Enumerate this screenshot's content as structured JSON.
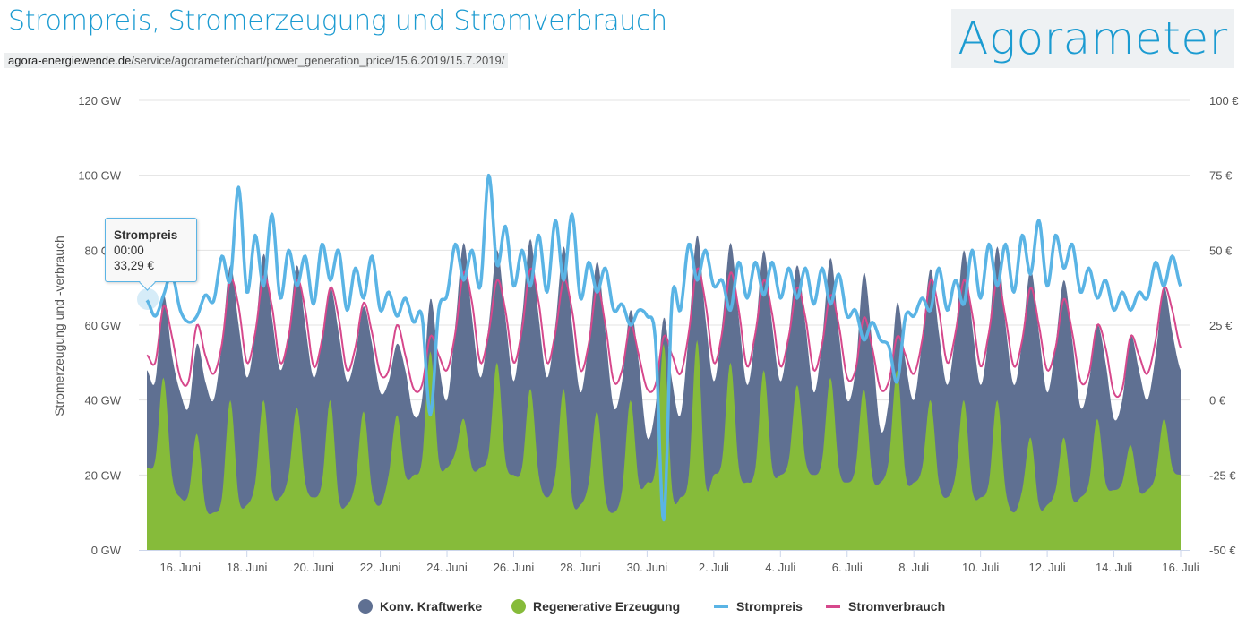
{
  "header": {
    "title": "Strompreis, Stromerzeugung und Stromverbrauch",
    "url_domain": "agora-energiewende.de",
    "url_path": "/service/agorameter/chart/power_generation_price/15.6.2019/15.7.2019/",
    "brand": "Agorameter"
  },
  "tooltip": {
    "series": "Strompreis",
    "time": "00:00",
    "value": "33,29 €"
  },
  "colors": {
    "konv": "#5f7092",
    "regen": "#86bb3a",
    "preis": "#5ab4e5",
    "verbrauch": "#d6488c",
    "title": "#1b9bd1"
  },
  "chart_data": {
    "type": "area+line",
    "ylabel": "Stromerzeugung und -verbrauch",
    "ylim_left": [
      0,
      120
    ],
    "ylim_right": [
      -50,
      100
    ],
    "left_ticks": [
      "0 GW",
      "20 GW",
      "40 GW",
      "60 GW",
      "80 GW",
      "100 GW",
      "120 GW"
    ],
    "right_ticks": [
      "-50 €",
      "-25 €",
      "0 €",
      "25 €",
      "50 €",
      "75 €",
      "100 €"
    ],
    "x_ticks": [
      "16. Juni",
      "18. Juni",
      "20. Juni",
      "22. Juni",
      "24. Juni",
      "26. Juni",
      "28. Juni",
      "30. Juni",
      "2. Juli",
      "4. Juli",
      "6. Juli",
      "8. Juli",
      "10. Juli",
      "12. Juli",
      "14. Juli",
      "16. Juli"
    ],
    "x_start": "15.6.2019 00:00",
    "x_end": "16.7.2019 00:00",
    "sample_hours": [
      0,
      6,
      12,
      18
    ],
    "grid": true,
    "legend_position": "bottom",
    "series": [
      {
        "name": "Konv. Kraftwerke",
        "kind": "stacked-area",
        "unit": "GW",
        "note_total_generation": true,
        "values": [
          48,
          45,
          68,
          52,
          42,
          38,
          55,
          45,
          40,
          55,
          76,
          60,
          46,
          58,
          79,
          62,
          48,
          58,
          76,
          60,
          46,
          56,
          70,
          58,
          45,
          52,
          65,
          55,
          42,
          45,
          55,
          48,
          36,
          40,
          67,
          50,
          40,
          60,
          82,
          62,
          46,
          60,
          80,
          62,
          45,
          62,
          83,
          62,
          46,
          60,
          81,
          60,
          42,
          56,
          77,
          58,
          38,
          45,
          64,
          50,
          30,
          38,
          62,
          45,
          36,
          58,
          84,
          62,
          45,
          60,
          82,
          62,
          44,
          58,
          80,
          60,
          45,
          58,
          76,
          60,
          42,
          56,
          78,
          58,
          40,
          48,
          74,
          55,
          32,
          40,
          66,
          50,
          40,
          56,
          75,
          58,
          44,
          58,
          80,
          60,
          44,
          58,
          81,
          60,
          44,
          56,
          75,
          58,
          42,
          55,
          72,
          56,
          38,
          45,
          60,
          50,
          35,
          40,
          57,
          48,
          40,
          52,
          70,
          58,
          48
        ]
      },
      {
        "name": "Regenerative Erzeugung",
        "kind": "area",
        "unit": "GW",
        "values": [
          22,
          24,
          46,
          20,
          14,
          15,
          31,
          12,
          10,
          14,
          40,
          14,
          12,
          18,
          40,
          16,
          14,
          20,
          38,
          18,
          14,
          18,
          40,
          14,
          12,
          18,
          37,
          16,
          12,
          20,
          36,
          20,
          20,
          24,
          53,
          24,
          22,
          26,
          35,
          22,
          22,
          26,
          50,
          24,
          20,
          22,
          43,
          20,
          14,
          20,
          43,
          14,
          12,
          18,
          37,
          14,
          10,
          16,
          40,
          18,
          18,
          22,
          55,
          16,
          14,
          20,
          56,
          18,
          20,
          24,
          50,
          22,
          18,
          22,
          48,
          22,
          20,
          24,
          44,
          24,
          20,
          24,
          46,
          22,
          18,
          22,
          43,
          20,
          18,
          24,
          48,
          20,
          18,
          22,
          40,
          18,
          14,
          20,
          40,
          16,
          14,
          18,
          40,
          16,
          10,
          16,
          30,
          12,
          12,
          16,
          30,
          14,
          14,
          18,
          35,
          18,
          16,
          18,
          28,
          16,
          16,
          20,
          35,
          22,
          20
        ]
      },
      {
        "name": "Strompreis",
        "kind": "line",
        "unit": "€",
        "axis": "right",
        "values": [
          33.29,
          28,
          35,
          42,
          30,
          26,
          28,
          35,
          33,
          48,
          40,
          71,
          36,
          55,
          38,
          62,
          34,
          50,
          38,
          48,
          32,
          52,
          40,
          50,
          30,
          44,
          34,
          48,
          30,
          36,
          28,
          34,
          26,
          28,
          -5,
          30,
          35,
          52,
          40,
          50,
          38,
          75,
          45,
          58,
          38,
          50,
          38,
          55,
          36,
          60,
          40,
          62,
          34,
          46,
          36,
          44,
          30,
          32,
          25,
          30,
          28,
          20,
          -40,
          34,
          30,
          52,
          40,
          50,
          38,
          40,
          30,
          46,
          34,
          46,
          35,
          46,
          34,
          44,
          34,
          44,
          32,
          44,
          32,
          42,
          28,
          30,
          20,
          26,
          20,
          18,
          6,
          28,
          28,
          34,
          30,
          44,
          30,
          40,
          32,
          50,
          34,
          52,
          38,
          52,
          36,
          55,
          42,
          60,
          38,
          55,
          44,
          52,
          36,
          44,
          34,
          40,
          30,
          36,
          30,
          36,
          34,
          46,
          38,
          48,
          38
        ]
      },
      {
        "name": "Stromverbrauch",
        "kind": "line",
        "unit": "GW",
        "values": [
          52,
          50,
          65,
          57,
          46,
          45,
          60,
          52,
          47,
          55,
          72,
          65,
          50,
          58,
          73,
          65,
          50,
          57,
          72,
          64,
          49,
          56,
          70,
          62,
          48,
          54,
          66,
          58,
          47,
          48,
          60,
          52,
          43,
          44,
          57,
          52,
          48,
          58,
          74,
          66,
          50,
          58,
          72,
          64,
          50,
          59,
          75,
          66,
          50,
          58,
          72,
          64,
          48,
          55,
          70,
          60,
          45,
          48,
          60,
          52,
          43,
          44,
          57,
          52,
          47,
          58,
          75,
          66,
          50,
          58,
          74,
          64,
          49,
          58,
          72,
          63,
          49,
          57,
          70,
          62,
          48,
          55,
          68,
          60,
          46,
          48,
          62,
          54,
          43,
          45,
          57,
          52,
          47,
          56,
          72,
          64,
          50,
          58,
          72,
          63,
          49,
          58,
          72,
          62,
          49,
          56,
          70,
          60,
          48,
          54,
          67,
          58,
          45,
          47,
          60,
          54,
          42,
          43,
          57,
          52,
          47,
          56,
          70,
          64,
          54
        ]
      }
    ]
  }
}
